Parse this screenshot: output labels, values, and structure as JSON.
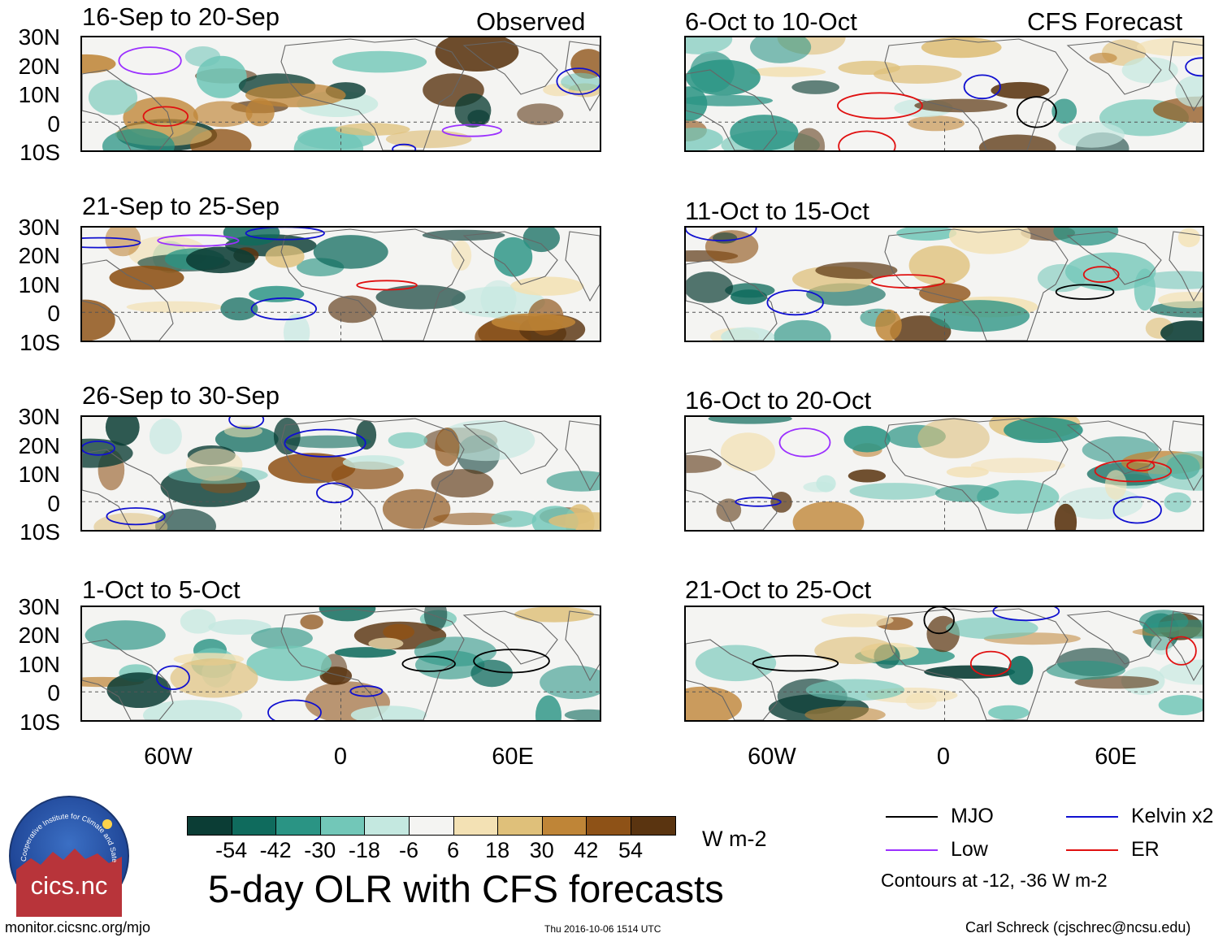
{
  "panels": [
    {
      "title": "16-Sep to 20-Sep",
      "tag": "Observed"
    },
    {
      "title": "6-Oct to 10-Oct",
      "tag": "CFS Forecast"
    },
    {
      "title": "21-Sep to 25-Sep",
      "tag": ""
    },
    {
      "title": "11-Oct to 15-Oct",
      "tag": ""
    },
    {
      "title": "26-Sep to 30-Sep",
      "tag": ""
    },
    {
      "title": "16-Oct to 20-Oct",
      "tag": ""
    },
    {
      "title": "1-Oct to 5-Oct",
      "tag": ""
    },
    {
      "title": "21-Oct to 25-Oct",
      "tag": ""
    }
  ],
  "lat_labels": [
    "30N",
    "20N",
    "10N",
    "0",
    "10S"
  ],
  "lon_labels": [
    "60W",
    "0",
    "60E"
  ],
  "colorbar": {
    "colors": [
      "#0b3d35",
      "#0f6b5d",
      "#2a9484",
      "#72c7b8",
      "#c4e8e0",
      "#f4f4f2",
      "#f3e1b4",
      "#dfc07a",
      "#bf8537",
      "#8e5217",
      "#5a3410"
    ],
    "labels": [
      "-54",
      "-42",
      "-30",
      "-18",
      "-6",
      "6",
      "18",
      "30",
      "42",
      "54"
    ],
    "units": "W m-2"
  },
  "legend": {
    "mjo": {
      "label": "MJO",
      "color": "#000000"
    },
    "kelvin": {
      "label": "Kelvin x2",
      "color": "#1010d0"
    },
    "low": {
      "label": "Low",
      "color": "#9b30ff"
    },
    "er": {
      "label": "ER",
      "color": "#e01010"
    },
    "note": "Contours at -12, -36 W m-2"
  },
  "main_title": "5-day OLR with CFS forecasts",
  "logo_text": "cics.nc",
  "logo_arc_text": "Cooperative Institute for Climate and Satellites",
  "footer": {
    "url": "monitor.cicsnc.org/mjo",
    "timestamp": "Thu 2016-10-06 1514 UTC",
    "author": "Carl Schreck (cjschrec@ncsu.edu)"
  }
}
